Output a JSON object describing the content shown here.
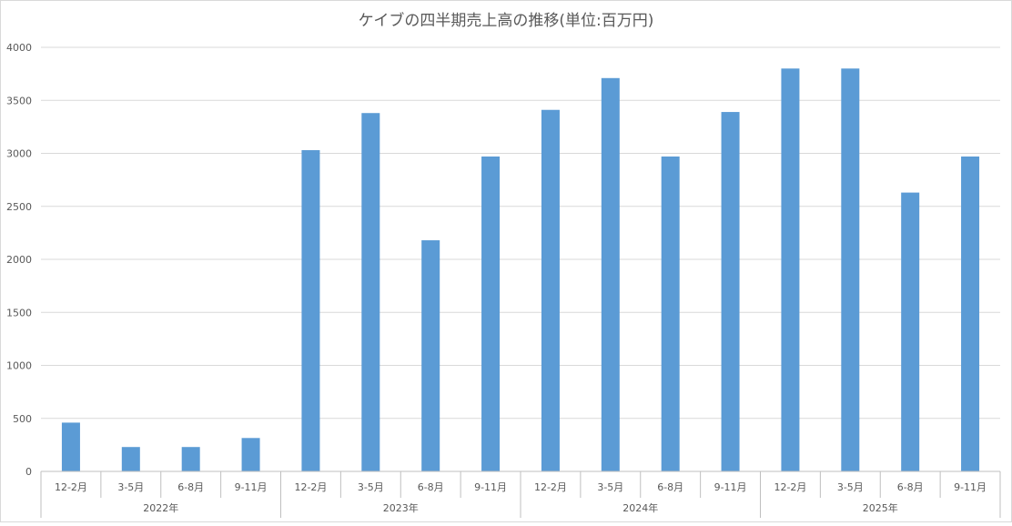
{
  "chart_data": {
    "type": "bar",
    "title": "ケイブの四半期売上高の推移(単位:百万円)",
    "ylim": [
      0,
      4000
    ],
    "yticks": [
      0,
      500,
      1000,
      1500,
      2000,
      2500,
      3000,
      3500,
      4000
    ],
    "grid": true,
    "legend": "none",
    "color": "#5b9bd5",
    "groups": [
      {
        "label": "2022年",
        "categories": [
          "12-2月",
          "3-5月",
          "6-8月",
          "9-11月"
        ],
        "values": [
          460,
          230,
          230,
          315
        ]
      },
      {
        "label": "2023年",
        "categories": [
          "12-2月",
          "3-5月",
          "6-8月",
          "9-11月"
        ],
        "values": [
          3030,
          3380,
          2180,
          2970
        ]
      },
      {
        "label": "2024年",
        "categories": [
          "12-2月",
          "3-5月",
          "6-8月",
          "9-11月"
        ],
        "values": [
          3410,
          3710,
          2970,
          3390
        ]
      },
      {
        "label": "2025年",
        "categories": [
          "12-2月",
          "3-5月",
          "6-8月",
          "9-11月"
        ],
        "values": [
          3800,
          3800,
          2630,
          2970
        ]
      }
    ]
  }
}
